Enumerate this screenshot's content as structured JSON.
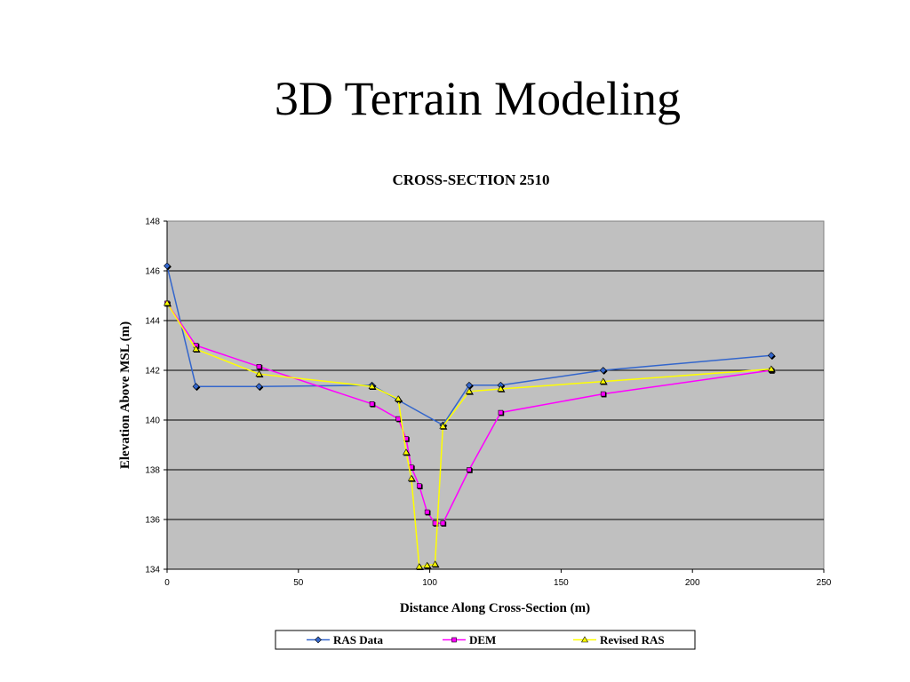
{
  "slide": {
    "title": "3D Terrain Modeling"
  },
  "chart_data": {
    "type": "line",
    "title": "CROSS-SECTION 2510",
    "xlabel": "Distance Along Cross-Section (m)",
    "ylabel": "Elevation Above MSL (m)",
    "xlim": [
      0,
      250
    ],
    "ylim": [
      134,
      148
    ],
    "xticks": [
      0,
      50,
      100,
      150,
      200,
      250
    ],
    "yticks": [
      134,
      136,
      138,
      140,
      142,
      144,
      146,
      148
    ],
    "grid": "horizontal",
    "legend_position": "bottom",
    "plot_background": "#c0c0c0",
    "series": [
      {
        "name": "RAS Data",
        "color": "#3366cc",
        "marker": "diamond",
        "points": [
          [
            0,
            146.2
          ],
          [
            11,
            141.35
          ],
          [
            35,
            141.35
          ],
          [
            78,
            141.4
          ],
          [
            88,
            140.8
          ],
          [
            105,
            139.8
          ],
          [
            115,
            141.4
          ],
          [
            127,
            141.4
          ],
          [
            166,
            142.0
          ],
          [
            230,
            142.6
          ]
        ]
      },
      {
        "name": "DEM",
        "color": "#ff00ff",
        "marker": "square",
        "points": [
          [
            0,
            144.7
          ],
          [
            11,
            143.0
          ],
          [
            35,
            142.15
          ],
          [
            78,
            140.65
          ],
          [
            88,
            140.05
          ],
          [
            91,
            139.25
          ],
          [
            93,
            138.1
          ],
          [
            96,
            137.35
          ],
          [
            99,
            136.3
          ],
          [
            102,
            135.85
          ],
          [
            105,
            135.85
          ],
          [
            115,
            138.0
          ],
          [
            127,
            140.3
          ],
          [
            166,
            141.05
          ],
          [
            230,
            142.0
          ]
        ]
      },
      {
        "name": "Revised RAS",
        "color": "#ffff00",
        "marker": "triangle",
        "points": [
          [
            0,
            144.7
          ],
          [
            11,
            142.85
          ],
          [
            35,
            141.85
          ],
          [
            78,
            141.35
          ],
          [
            88,
            140.85
          ],
          [
            91,
            138.7
          ],
          [
            93,
            137.65
          ],
          [
            96,
            134.1
          ],
          [
            99,
            134.15
          ],
          [
            102,
            134.2
          ],
          [
            105,
            139.75
          ],
          [
            115,
            141.15
          ],
          [
            127,
            141.25
          ],
          [
            166,
            141.55
          ],
          [
            230,
            142.05
          ]
        ]
      }
    ]
  }
}
